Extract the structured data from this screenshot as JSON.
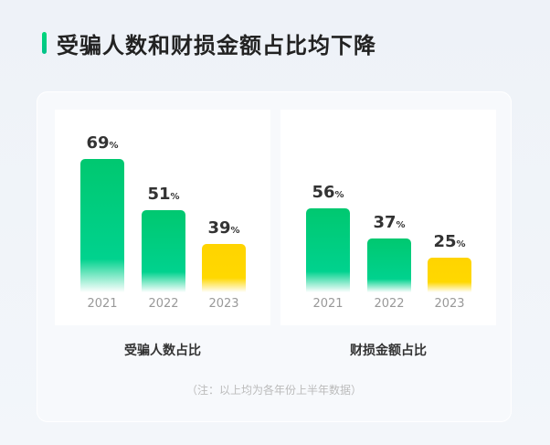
{
  "title": "受骗人数和财损金额占比均下降",
  "note": "（注：以上均为各年份上半年数据）",
  "colors": {
    "green": "#00c878",
    "yellow": "#ffd400"
  },
  "chart_data": [
    {
      "type": "bar",
      "title": "受骗人数占比",
      "categories": [
        "2021",
        "2022",
        "2023"
      ],
      "values": [
        69,
        51,
        39
      ],
      "unit": "%",
      "colors": [
        "green",
        "green",
        "yellow"
      ]
    },
    {
      "type": "bar",
      "title": "财损金额占比",
      "categories": [
        "2021",
        "2022",
        "2023"
      ],
      "values": [
        56,
        37,
        25
      ],
      "unit": "%",
      "colors": [
        "green",
        "green",
        "yellow"
      ]
    }
  ]
}
